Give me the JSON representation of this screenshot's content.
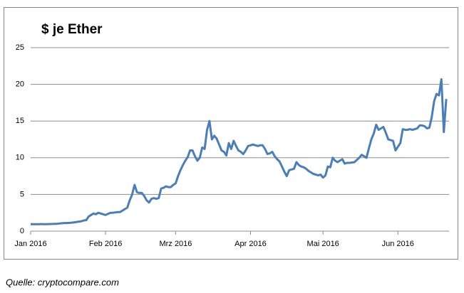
{
  "chart_data": {
    "type": "line",
    "title": "$ je Ether",
    "categories": [
      "Jan 2016",
      null,
      null,
      null,
      null,
      null,
      null,
      null,
      null,
      null,
      null,
      null,
      null,
      null,
      null,
      null,
      null,
      null,
      null,
      null,
      null,
      null,
      null,
      null,
      null,
      null,
      null,
      null,
      null,
      null,
      null,
      "Feb 2016",
      null,
      null,
      null,
      null,
      null,
      null,
      null,
      null,
      null,
      null,
      null,
      null,
      null,
      null,
      null,
      null,
      null,
      null,
      null,
      null,
      null,
      null,
      null,
      null,
      null,
      null,
      null,
      null,
      "Mrz 2016",
      null,
      null,
      null,
      null,
      null,
      null,
      null,
      null,
      null,
      null,
      null,
      null,
      null,
      null,
      null,
      null,
      null,
      null,
      null,
      null,
      null,
      null,
      null,
      null,
      null,
      null,
      null,
      null,
      null,
      null,
      "Apr 2016",
      null,
      null,
      null,
      null,
      null,
      null,
      null,
      null,
      null,
      null,
      null,
      null,
      null,
      null,
      null,
      null,
      null,
      null,
      null,
      null,
      null,
      null,
      null,
      null,
      null,
      null,
      null,
      null,
      null,
      "Mai 2016",
      null,
      null,
      null,
      null,
      null,
      null,
      null,
      null,
      null,
      null,
      null,
      null,
      null,
      null,
      null,
      null,
      null,
      null,
      null,
      null,
      null,
      null,
      null,
      null,
      null,
      null,
      null,
      null,
      null,
      null,
      "Jun 2016",
      null,
      null,
      null,
      null,
      null,
      null,
      null,
      null,
      null,
      null,
      null,
      null,
      null,
      null,
      null,
      null,
      null,
      null,
      null,
      null
    ],
    "series": [
      {
        "name": "Ether",
        "color": "#4a7ebb",
        "values": [
          0.95,
          0.95,
          0.95,
          0.95,
          0.96,
          0.96,
          0.95,
          0.96,
          0.97,
          0.98,
          1.0,
          1.0,
          1.05,
          1.08,
          1.1,
          1.1,
          1.12,
          1.15,
          1.2,
          1.25,
          1.3,
          1.35,
          1.45,
          1.5,
          2.0,
          2.2,
          2.4,
          2.3,
          2.5,
          2.4,
          2.3,
          2.2,
          2.35,
          2.5,
          2.5,
          2.55,
          2.6,
          2.6,
          2.8,
          3.0,
          3.2,
          4.2,
          5.0,
          6.3,
          5.3,
          5.2,
          5.2,
          4.8,
          4.2,
          3.9,
          4.4,
          4.5,
          4.4,
          4.5,
          5.8,
          5.9,
          6.1,
          6.0,
          6.0,
          6.3,
          6.5,
          7.5,
          8.3,
          9.0,
          9.6,
          10.1,
          11.0,
          11.0,
          10.2,
          9.6,
          10.0,
          11.4,
          11.2,
          13.8,
          15.0,
          12.5,
          13.0,
          12.6,
          11.8,
          11.0,
          10.8,
          10.3,
          12.0,
          11.2,
          12.3,
          11.6,
          11.0,
          10.8,
          10.5,
          11.0,
          11.6,
          11.7,
          11.8,
          11.7,
          11.6,
          11.7,
          11.7,
          11.2,
          10.5,
          10.6,
          10.8,
          10.2,
          9.8,
          9.5,
          8.8,
          8.1,
          7.5,
          8.3,
          8.4,
          8.5,
          9.4,
          9.0,
          8.8,
          8.7,
          8.5,
          8.2,
          8.0,
          7.8,
          7.7,
          7.6,
          7.7,
          7.3,
          7.6,
          8.8,
          8.7,
          10.0,
          9.6,
          9.4,
          9.6,
          9.8,
          9.2,
          9.3,
          9.3,
          9.35,
          9.4,
          9.7,
          10.0,
          10.4,
          10.2,
          10.0,
          11.3,
          12.5,
          13.3,
          14.5,
          13.8,
          14.0,
          14.2,
          13.4,
          12.5,
          12.4,
          12.3,
          11.0,
          11.5,
          12.0,
          13.9,
          13.8,
          13.8,
          13.9,
          13.8,
          13.9,
          14.0,
          14.4,
          14.4,
          14.3,
          14.0,
          14.1,
          15.5,
          17.7,
          18.7,
          18.5,
          20.7,
          13.5,
          18.0
        ]
      }
    ],
    "ylim": [
      0,
      25
    ],
    "yticks": [
      0,
      5,
      10,
      15,
      20,
      25
    ],
    "grid": true
  },
  "source": "Quelle: cryptocompare.com"
}
